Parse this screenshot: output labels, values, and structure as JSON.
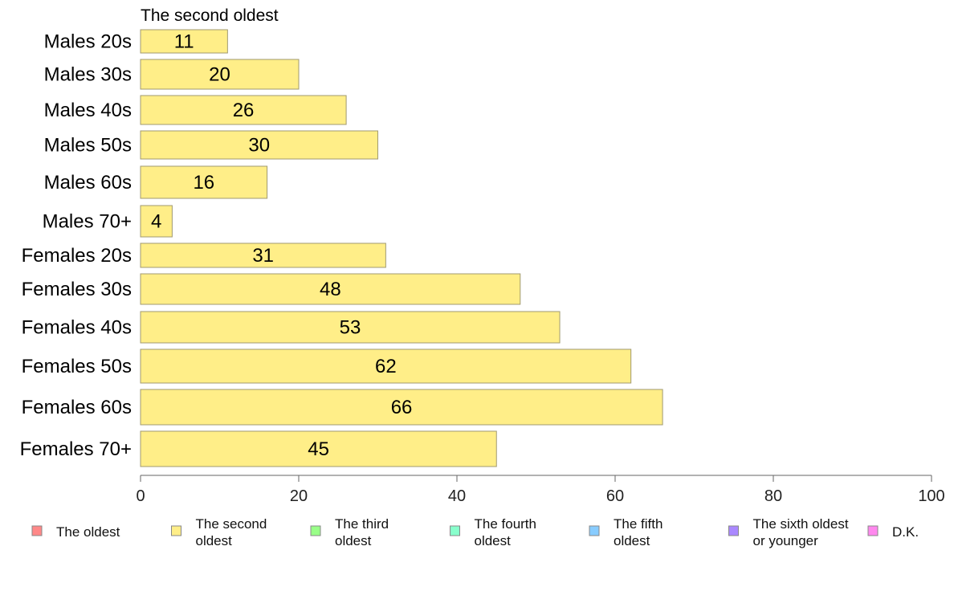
{
  "chart_data": {
    "type": "bar",
    "orientation": "horizontal",
    "title": "The second oldest",
    "categories": [
      "Males 20s",
      "Males 30s",
      "Males 40s",
      "Males 50s",
      "Males 60s",
      "Males 70+",
      "Females 20s",
      "Females 30s",
      "Females 40s",
      "Females 50s",
      "Females 60s",
      "Females 70+"
    ],
    "series": [
      {
        "name": "The second oldest",
        "color": "#ffee88",
        "values": [
          11,
          20,
          26,
          30,
          16,
          4,
          31,
          48,
          53,
          62,
          66,
          45
        ]
      }
    ],
    "xlim": [
      0,
      100
    ],
    "xticks": [
      "0",
      "20",
      "40",
      "60",
      "80",
      "100"
    ],
    "xlabel": "",
    "ylabel": "",
    "grid": false,
    "legend_position": "bottom",
    "legend": [
      {
        "label": "The oldest",
        "color": "#ff8888"
      },
      {
        "label": "The second oldest",
        "color": "#ffee88"
      },
      {
        "label": "The third oldest",
        "color": "#99ff88"
      },
      {
        "label": "The fourth oldest",
        "color": "#88ffcc"
      },
      {
        "label": "The fifth oldest",
        "color": "#88ccff"
      },
      {
        "label": "The sixth oldest or younger",
        "color": "#aa88ff"
      },
      {
        "label": "D.K.",
        "color": "#ff88ee"
      }
    ]
  }
}
